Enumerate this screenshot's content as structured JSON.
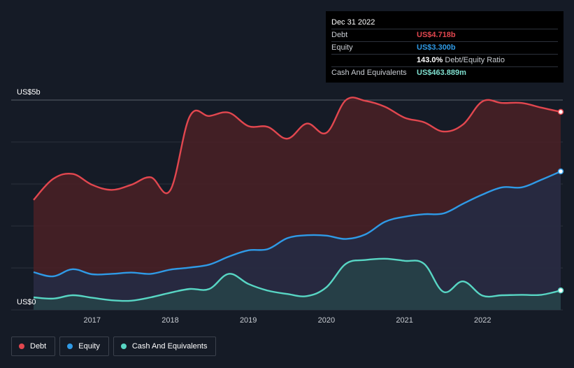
{
  "tooltip": {
    "date": "Dec 31 2022",
    "rows": [
      {
        "label": "Debt",
        "value": "US$4.718b",
        "color": "#e2474f",
        "suffix": ""
      },
      {
        "label": "Equity",
        "value": "US$3.300b",
        "color": "#2f9ae6",
        "suffix": ""
      },
      {
        "label": "",
        "value": "143.0%",
        "color": "#ffffff",
        "suffix": "Debt/Equity Ratio"
      },
      {
        "label": "Cash And Equivalents",
        "value": "US$463.889m",
        "color": "#7fe0d0",
        "suffix": ""
      }
    ]
  },
  "legend": [
    {
      "label": "Debt",
      "color": "#e2474f"
    },
    {
      "label": "Equity",
      "color": "#2f9ae6"
    },
    {
      "label": "Cash And Equivalents",
      "color": "#58d6c4"
    }
  ],
  "chart_data": {
    "type": "area",
    "ylabel_top": "US$5b",
    "ylabel_bottom": "US$0",
    "ylim": [
      0,
      5
    ],
    "xlim": [
      2016.25,
      2023.0
    ],
    "x_ticks": [
      2017,
      2018,
      2019,
      2020,
      2021,
      2022
    ],
    "x_tick_labels": [
      "2017",
      "2018",
      "2019",
      "2020",
      "2021",
      "2022"
    ],
    "grid": true,
    "series": [
      {
        "name": "Debt",
        "color": "#e2474f",
        "fill": "#4a2026",
        "x": [
          2016.25,
          2016.5,
          2016.75,
          2017.0,
          2017.25,
          2017.5,
          2017.75,
          2018.0,
          2018.25,
          2018.5,
          2018.75,
          2019.0,
          2019.25,
          2019.5,
          2019.75,
          2020.0,
          2020.25,
          2020.5,
          2020.75,
          2021.0,
          2021.25,
          2021.5,
          2021.75,
          2022.0,
          2022.25,
          2022.5,
          2022.75,
          2023.0
        ],
        "y": [
          2.62,
          3.12,
          3.24,
          2.98,
          2.86,
          2.98,
          3.16,
          2.85,
          4.61,
          4.62,
          4.7,
          4.38,
          4.36,
          4.08,
          4.44,
          4.22,
          5.0,
          4.98,
          4.84,
          4.58,
          4.47,
          4.25,
          4.42,
          4.97,
          4.93,
          4.93,
          4.82,
          4.718
        ]
      },
      {
        "name": "Equity",
        "color": "#2f9ae6",
        "fill": "#222c45",
        "x": [
          2016.25,
          2016.5,
          2016.75,
          2017.0,
          2017.25,
          2017.5,
          2017.75,
          2018.0,
          2018.25,
          2018.5,
          2018.75,
          2019.0,
          2019.25,
          2019.5,
          2019.75,
          2020.0,
          2020.25,
          2020.5,
          2020.75,
          2021.0,
          2021.25,
          2021.5,
          2021.75,
          2022.0,
          2022.25,
          2022.5,
          2022.75,
          2023.0
        ],
        "y": [
          0.9,
          0.8,
          0.97,
          0.85,
          0.86,
          0.89,
          0.86,
          0.96,
          1.01,
          1.08,
          1.27,
          1.42,
          1.45,
          1.71,
          1.78,
          1.77,
          1.69,
          1.8,
          2.1,
          2.22,
          2.28,
          2.3,
          2.53,
          2.75,
          2.92,
          2.92,
          3.1,
          3.3
        ]
      },
      {
        "name": "Cash And Equivalents",
        "color": "#58d6c4",
        "fill": "#274349",
        "x": [
          2016.25,
          2016.5,
          2016.75,
          2017.0,
          2017.25,
          2017.5,
          2017.75,
          2018.0,
          2018.25,
          2018.5,
          2018.75,
          2019.0,
          2019.25,
          2019.5,
          2019.75,
          2020.0,
          2020.25,
          2020.5,
          2020.75,
          2021.0,
          2021.25,
          2021.5,
          2021.75,
          2022.0,
          2022.25,
          2022.5,
          2022.75,
          2023.0
        ],
        "y": [
          0.3,
          0.27,
          0.35,
          0.29,
          0.23,
          0.22,
          0.3,
          0.41,
          0.5,
          0.5,
          0.86,
          0.62,
          0.46,
          0.38,
          0.33,
          0.54,
          1.1,
          1.19,
          1.22,
          1.17,
          1.1,
          0.43,
          0.68,
          0.34,
          0.35,
          0.36,
          0.36,
          0.464
        ]
      }
    ]
  }
}
